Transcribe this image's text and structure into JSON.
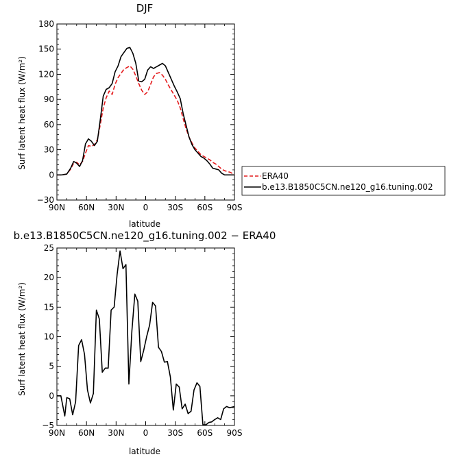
{
  "chart_data": [
    {
      "type": "line",
      "title": "DJF",
      "xlabel": "latitude",
      "ylabel": "Surf latent heat flux (W/m²)",
      "xlim": [
        90,
        -90
      ],
      "ylim": [
        -30,
        180
      ],
      "x_ticks": [
        90,
        60,
        30,
        0,
        -30,
        -60,
        -90
      ],
      "x_tick_labels": [
        "90N",
        "60N",
        "30N",
        "0",
        "30S",
        "60S",
        "90S"
      ],
      "y_ticks": [
        -30,
        0,
        30,
        60,
        90,
        120,
        150,
        180
      ],
      "y_tick_labels": [
        "−30",
        "0",
        "30",
        "60",
        "90",
        "120",
        "150",
        "180"
      ],
      "legend_position": "right",
      "series": [
        {
          "name": "ERA40",
          "color": "#e41a1c",
          "style": "dashed",
          "x": [
            90,
            85,
            80,
            76,
            73,
            70,
            67,
            64,
            61,
            58,
            55,
            52,
            49,
            46,
            43,
            40,
            37,
            34,
            31,
            28,
            25,
            22,
            19,
            16,
            13,
            10,
            7,
            4,
            1,
            -2,
            -5,
            -8,
            -11,
            -14,
            -17,
            -20,
            -23,
            -26,
            -29,
            -32,
            -35,
            -38,
            -41,
            -44,
            -47,
            -50,
            -53,
            -56,
            -59,
            -62,
            -65,
            -68,
            -71,
            -74,
            -77,
            -80,
            -83,
            -86,
            -90
          ],
          "values": [
            0,
            0,
            1,
            7,
            14,
            15,
            12,
            16,
            26,
            35,
            34,
            36,
            42,
            60,
            80,
            92,
            100,
            96,
            108,
            116,
            121,
            126,
            128,
            130,
            126,
            118,
            109,
            101,
            96,
            99,
            108,
            117,
            121,
            122,
            119,
            114,
            107,
            101,
            95,
            89,
            80,
            67,
            55,
            45,
            38,
            32,
            28,
            24,
            22,
            20,
            18,
            15,
            13,
            10,
            7,
            5,
            4,
            3,
            0
          ]
        },
        {
          "name": "b.e13.B1850C5CN.ne120_g16.tuning.002",
          "color": "#000000",
          "style": "solid",
          "x": [
            90,
            85,
            80,
            76,
            73,
            70,
            67,
            64,
            61,
            58,
            55,
            52,
            49,
            46,
            43,
            40,
            37,
            34,
            31,
            28,
            25,
            22,
            19,
            16,
            13,
            10,
            7,
            4,
            1,
            -2,
            -5,
            -8,
            -11,
            -14,
            -17,
            -20,
            -23,
            -26,
            -29,
            -32,
            -35,
            -38,
            -41,
            -44,
            -47,
            -50,
            -53,
            -56,
            -59,
            -62,
            -65,
            -68,
            -71,
            -74,
            -77,
            -80,
            -83,
            -86,
            -90
          ],
          "values": [
            0,
            0,
            1,
            8,
            16,
            14,
            10,
            17,
            37,
            43,
            40,
            35,
            40,
            66,
            94,
            102,
            104,
            109,
            123,
            130,
            141,
            146,
            151,
            152,
            145,
            133,
            112,
            111,
            114,
            125,
            129,
            127,
            129,
            131,
            133,
            130,
            122,
            114,
            106,
            99,
            91,
            73,
            59,
            45,
            36,
            30,
            26,
            22,
            20,
            17,
            13,
            8,
            7,
            6,
            2,
            0,
            0,
            0,
            0
          ]
        }
      ]
    },
    {
      "type": "line",
      "title": "b.e13.B1850C5CN.ne120_g16.tuning.002 − ERA40",
      "xlabel": "latitude",
      "ylabel": "Surf latent heat flux (W/m²)",
      "xlim": [
        90,
        -90
      ],
      "ylim": [
        -5,
        25
      ],
      "x_ticks": [
        90,
        60,
        30,
        0,
        -30,
        -60,
        -90
      ],
      "x_tick_labels": [
        "90N",
        "60N",
        "30N",
        "0",
        "30S",
        "60S",
        "90S"
      ],
      "y_ticks": [
        -5,
        0,
        5,
        10,
        15,
        20,
        25
      ],
      "y_tick_labels": [
        "−5",
        "0",
        "5",
        "10",
        "15",
        "20",
        "25"
      ],
      "series": [
        {
          "name": "b.e13.B1850C5CN.ne120_g16.tuning.002 − ERA40",
          "color": "#000000",
          "style": "solid",
          "x": [
            90,
            86,
            82,
            80,
            77,
            74,
            71,
            68,
            65,
            62,
            59,
            56,
            53,
            50,
            47,
            44,
            41,
            38,
            35,
            32,
            29,
            26,
            23,
            20,
            17,
            14,
            11,
            8,
            5,
            2,
            -1,
            -4,
            -7,
            -10,
            -13,
            -16,
            -19,
            -22,
            -25,
            -28,
            -31,
            -34,
            -37,
            -40,
            -43,
            -46,
            -49,
            -52,
            -55,
            -58,
            -61,
            -64,
            -67,
            -70,
            -73,
            -76,
            -79,
            -82,
            -85,
            -88,
            -90
          ],
          "values": [
            0,
            0,
            -3.4,
            -0.3,
            -0.5,
            -3.2,
            -1,
            8.5,
            9.5,
            7,
            1,
            -1.2,
            0.4,
            14.5,
            13,
            4,
            4.7,
            4.7,
            14.5,
            15,
            20.5,
            24.5,
            21.5,
            22.2,
            2,
            11,
            17.2,
            16,
            5.8,
            7.7,
            10,
            12,
            15.8,
            15.2,
            8.2,
            7.5,
            5.7,
            5.8,
            3.2,
            -2.4,
            2,
            1.5,
            -2.2,
            -1.4,
            -3,
            -2.6,
            1,
            2.2,
            1.6,
            -4.9,
            -4.9,
            -4.5,
            -4.4,
            -4,
            -3.7,
            -4,
            -2.2,
            -1.8,
            -2,
            -1.9,
            -1.8
          ]
        }
      ]
    }
  ]
}
